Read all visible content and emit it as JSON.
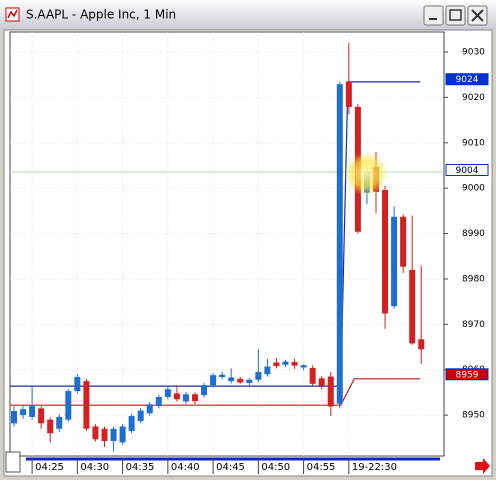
{
  "window_title": "S.AAPL - Apple Inc, 1 Min",
  "chart_data": {
    "type": "candlestick",
    "categories": [
      null,
      null,
      "04:25",
      null,
      null,
      null,
      null,
      "04:30",
      null,
      null,
      null,
      null,
      "04:35",
      null,
      null,
      null,
      null,
      "04:40",
      null,
      null,
      null,
      null,
      "04:45",
      null,
      null,
      null,
      null,
      "04:50",
      null,
      null,
      null,
      null,
      "04:55",
      null,
      null,
      null,
      null,
      "19-22:30",
      null,
      null,
      null,
      null,
      null,
      null,
      null,
      null
    ],
    "open": [
      8948.2,
      8950,
      8949.6,
      8951.5,
      8949,
      8947,
      8949,
      8955.3,
      8957.5,
      8947.5,
      8947,
      8944.3,
      8944,
      8946.5,
      8948.7,
      8950.4,
      8952,
      8954,
      8954.8,
      8953,
      8954.6,
      8954.4,
      8956.6,
      8958.4,
      8957.5,
      8958,
      8957.1,
      8957.8,
      8959,
      8961.6,
      8961.1,
      8961.7,
      8960.5,
      8960.4,
      8958.1,
      8958.5,
      8952.5,
      9023.5,
      9017.9,
      8999,
      9004.7,
      8999.6,
      8974,
      8993.7,
      8982,
      8966.7
    ],
    "high": [
      8952,
      8952,
      8956.4,
      8952,
      8949.5,
      8950.2,
      8955.8,
      8959,
      8958,
      8948,
      8947.5,
      8947.5,
      8948,
      8950.3,
      8951.5,
      8952.9,
      8954.5,
      8956.2,
      8956.6,
      8955.1,
      8955,
      8957.1,
      8959.3,
      8959.5,
      8960.3,
      8958.4,
      8958.1,
      8964.5,
      8962.4,
      8962.6,
      8962.2,
      8962.4,
      8961.2,
      8961,
      8958.6,
      8959.5,
      9023.5,
      9032,
      9018.5,
      9004.3,
      9008,
      9000.5,
      8996,
      8994.2,
      8994,
      8983
    ],
    "low": [
      8947.5,
      8949.2,
      8949,
      8947,
      8944,
      8946.3,
      8948.5,
      8954.8,
      8946.5,
      8944.2,
      8943,
      8942,
      8943.5,
      8946,
      8948.2,
      8949.9,
      8951.5,
      8953.5,
      8953,
      8952.5,
      8952.4,
      8953.9,
      8956.1,
      8957.9,
      8957,
      8956.9,
      8956.6,
      8957.3,
      8958.5,
      8960.3,
      8960.6,
      8960.2,
      8959.9,
      8956.5,
      8955.7,
      8949.8,
      8951.5,
      9016.3,
      8990,
      8996.5,
      8994.5,
      8969,
      8973.5,
      8981.3,
      8965.5,
      8961.3
    ],
    "close": [
      8950.9,
      8951.3,
      8952,
      8948.2,
      8946,
      8949.6,
      8955.3,
      8958.4,
      8947,
      8944.7,
      8944.3,
      8947,
      8947.5,
      8949.8,
      8951,
      8952.4,
      8954,
      8955.7,
      8953.5,
      8954.6,
      8953.1,
      8956.6,
      8958.8,
      8958.9,
      8958.3,
      8957.2,
      8957.8,
      8959.5,
      8960.7,
      8960.8,
      8961.8,
      8960.9,
      8961,
      8956.9,
      8956.5,
      8951.9,
      9022.9,
      9017.9,
      8990.4,
      9003.6,
      8999.2,
      8972.4,
      8993.7,
      8982.7,
      8965.8,
      8964.5
    ],
    "up_color": "#1f6fd1",
    "down_color": "#d42020",
    "lines": [
      {
        "color": "#1c2ca8",
        "x": [
          -0.45,
          36.1,
          36.9,
          44.9
        ],
        "values": [
          8956.4,
          8956.4,
          9023.4,
          9023.4
        ]
      },
      {
        "color": "#c81e1e",
        "x": [
          -0.45,
          36.1,
          37.6,
          44.9
        ],
        "values": [
          8952.2,
          8952.2,
          8958,
          8958
        ]
      }
    ],
    "crosshair": {
      "value": 9003.6,
      "color": "#b7d9b0"
    },
    "price_tags": [
      {
        "value": 9024,
        "color": "#0033cc",
        "text_color": "#ffffff"
      },
      {
        "value": 9004,
        "color": "#ffffff",
        "text_color": "#000000"
      },
      {
        "value": 8959,
        "color": "#cc0000",
        "text_color": "#ffffff"
      }
    ],
    "ylim": [
      8941,
      9034.4
    ],
    "yticks": [
      8950,
      8960,
      8970,
      8980,
      8990,
      9000,
      9010,
      9020,
      9030
    ],
    "grid": true
  }
}
